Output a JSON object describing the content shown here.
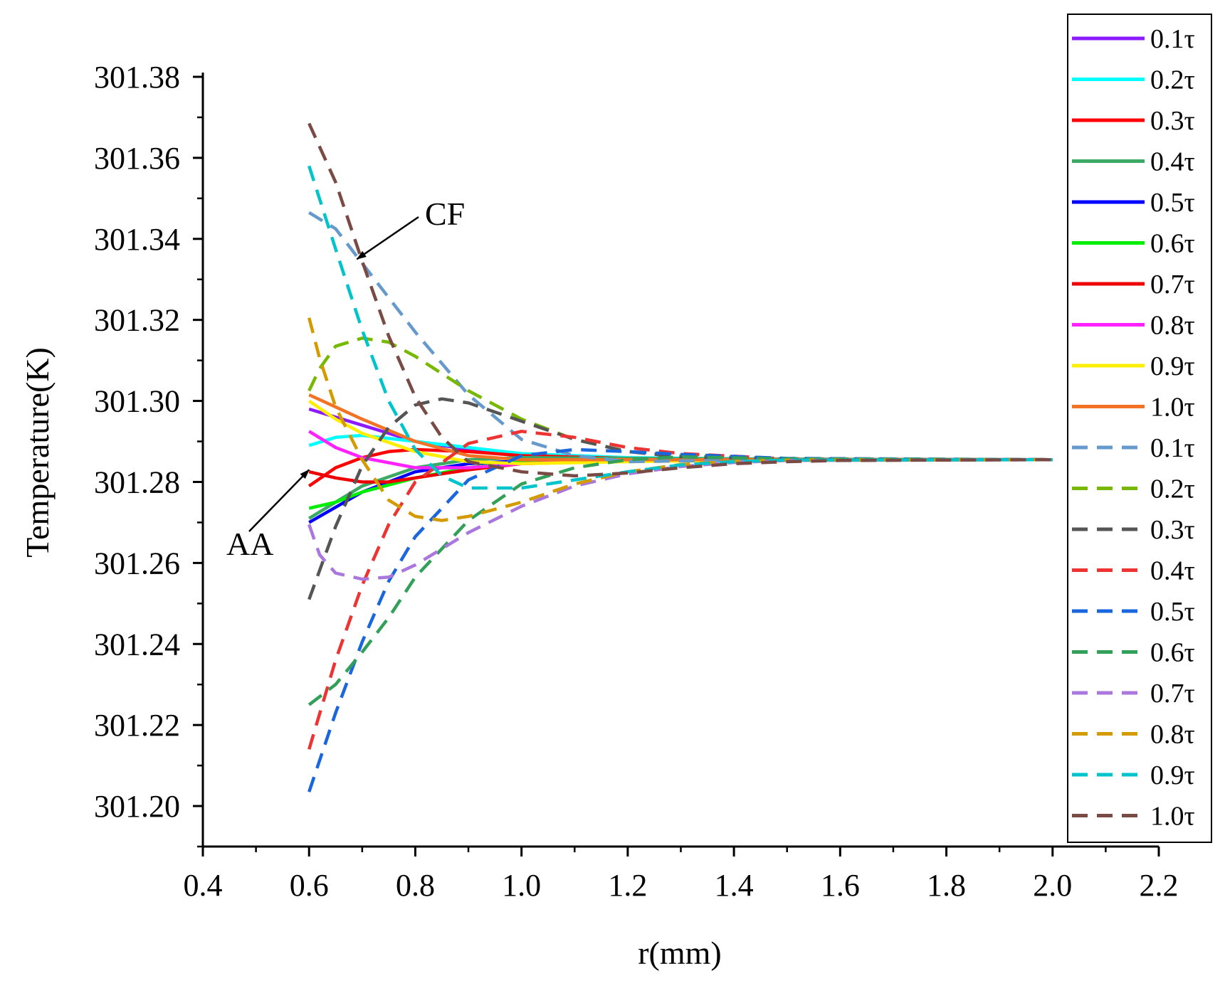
{
  "chart_data": {
    "type": "line",
    "xlabel": "r(mm)",
    "ylabel": "Temperature(K)",
    "xlim": [
      0.4,
      2.2
    ],
    "ylim": [
      301.19,
      301.38
    ],
    "xticks": [
      "0.4",
      "0.6",
      "0.8",
      "1.0",
      "1.2",
      "1.4",
      "1.6",
      "1.8",
      "2.0",
      "2.2"
    ],
    "yticks": [
      "301.20",
      "301.22",
      "301.24",
      "301.26",
      "301.28",
      "301.30",
      "301.32",
      "301.34",
      "301.36",
      "301.38"
    ],
    "annotations": [
      {
        "label": "CF",
        "target": [
          0.69,
          301.335
        ]
      },
      {
        "label": "AA",
        "target": [
          0.6,
          301.283
        ]
      }
    ],
    "series": [
      {
        "name": "0.1τ",
        "group": "AA",
        "style": "solid",
        "color": "#8b1aff",
        "points": [
          [
            0.6,
            301.298
          ],
          [
            0.7,
            301.294
          ],
          [
            0.8,
            301.29
          ],
          [
            0.9,
            301.288
          ],
          [
            1.0,
            301.2865
          ],
          [
            1.2,
            301.2858
          ],
          [
            1.5,
            301.2856
          ],
          [
            2.0,
            301.2855
          ]
        ]
      },
      {
        "name": "0.2τ",
        "group": "AA",
        "style": "solid",
        "color": "#00ffff",
        "points": [
          [
            0.6,
            301.289
          ],
          [
            0.65,
            301.291
          ],
          [
            0.7,
            301.2915
          ],
          [
            0.8,
            301.29
          ],
          [
            0.9,
            301.2885
          ],
          [
            1.0,
            301.287
          ],
          [
            1.2,
            301.286
          ],
          [
            1.5,
            301.2856
          ],
          [
            2.0,
            301.2855
          ]
        ]
      },
      {
        "name": "0.3τ",
        "group": "AA",
        "style": "solid",
        "color": "#ff0000",
        "points": [
          [
            0.6,
            301.279
          ],
          [
            0.65,
            301.2835
          ],
          [
            0.7,
            301.286
          ],
          [
            0.75,
            301.2875
          ],
          [
            0.8,
            301.288
          ],
          [
            0.9,
            301.2875
          ],
          [
            1.0,
            301.2865
          ],
          [
            1.2,
            301.2858
          ],
          [
            1.5,
            301.2856
          ],
          [
            2.0,
            301.2855
          ]
        ]
      },
      {
        "name": "0.4τ",
        "group": "AA",
        "style": "solid",
        "color": "#3caa64",
        "points": [
          [
            0.6,
            301.271
          ],
          [
            0.7,
            301.279
          ],
          [
            0.8,
            301.2835
          ],
          [
            0.9,
            301.2855
          ],
          [
            1.0,
            301.286
          ],
          [
            1.2,
            301.2858
          ],
          [
            1.5,
            301.2856
          ],
          [
            2.0,
            301.2855
          ]
        ]
      },
      {
        "name": "0.5τ",
        "group": "AA",
        "style": "solid",
        "color": "#0000ff",
        "points": [
          [
            0.6,
            301.27
          ],
          [
            0.7,
            301.2775
          ],
          [
            0.8,
            301.2825
          ],
          [
            0.9,
            301.2845
          ],
          [
            1.0,
            301.2852
          ],
          [
            1.2,
            301.2855
          ],
          [
            1.5,
            301.2855
          ],
          [
            2.0,
            301.2855
          ]
        ]
      },
      {
        "name": "0.6τ",
        "group": "AA",
        "style": "solid",
        "color": "#00ee00",
        "points": [
          [
            0.6,
            301.2735
          ],
          [
            0.65,
            301.275
          ],
          [
            0.7,
            301.2775
          ],
          [
            0.8,
            301.281
          ],
          [
            0.9,
            301.2835
          ],
          [
            1.0,
            301.285
          ],
          [
            1.2,
            301.2855
          ],
          [
            1.5,
            301.2855
          ],
          [
            2.0,
            301.2855
          ]
        ]
      },
      {
        "name": "0.7τ",
        "group": "AA",
        "style": "solid",
        "color": "#ee0000",
        "points": [
          [
            0.6,
            301.2825
          ],
          [
            0.65,
            301.281
          ],
          [
            0.7,
            301.28
          ],
          [
            0.75,
            301.28
          ],
          [
            0.8,
            301.281
          ],
          [
            0.9,
            301.283
          ],
          [
            1.0,
            301.2845
          ],
          [
            1.2,
            301.2852
          ],
          [
            1.5,
            301.2855
          ],
          [
            2.0,
            301.2855
          ]
        ]
      },
      {
        "name": "0.8τ",
        "group": "AA",
        "style": "solid",
        "color": "#ff22ff",
        "points": [
          [
            0.6,
            301.2925
          ],
          [
            0.65,
            301.2885
          ],
          [
            0.7,
            301.286
          ],
          [
            0.8,
            301.2835
          ],
          [
            0.9,
            301.2835
          ],
          [
            1.0,
            301.2845
          ],
          [
            1.2,
            301.2852
          ],
          [
            1.5,
            301.2855
          ],
          [
            2.0,
            301.2855
          ]
        ]
      },
      {
        "name": "0.9τ",
        "group": "AA",
        "style": "solid",
        "color": "#ffee00",
        "points": [
          [
            0.6,
            301.3
          ],
          [
            0.65,
            301.2955
          ],
          [
            0.7,
            301.292
          ],
          [
            0.8,
            301.2875
          ],
          [
            0.9,
            301.285
          ],
          [
            1.0,
            301.2845
          ],
          [
            1.2,
            301.285
          ],
          [
            1.5,
            301.2855
          ],
          [
            2.0,
            301.2855
          ]
        ]
      },
      {
        "name": "1.0τ",
        "group": "AA",
        "style": "solid",
        "color": "#f27325",
        "points": [
          [
            0.6,
            301.3015
          ],
          [
            0.65,
            301.2985
          ],
          [
            0.7,
            301.2955
          ],
          [
            0.8,
            301.29
          ],
          [
            0.9,
            301.2865
          ],
          [
            1.0,
            301.2855
          ],
          [
            1.2,
            301.2855
          ],
          [
            1.5,
            301.2855
          ],
          [
            2.0,
            301.2855
          ]
        ]
      },
      {
        "name": "0.1τ",
        "group": "CF",
        "style": "dashed",
        "color": "#6699cc",
        "points": [
          [
            0.6,
            301.3465
          ],
          [
            0.65,
            301.3425
          ],
          [
            0.7,
            301.334
          ],
          [
            0.8,
            301.317
          ],
          [
            0.9,
            301.3015
          ],
          [
            1.0,
            301.2905
          ],
          [
            1.1,
            301.2865
          ],
          [
            1.2,
            301.285
          ],
          [
            1.3,
            301.2852
          ],
          [
            1.5,
            301.2855
          ],
          [
            2.0,
            301.2855
          ]
        ]
      },
      {
        "name": "0.2τ",
        "group": "CF",
        "style": "dashed",
        "color": "#77b800",
        "points": [
          [
            0.6,
            301.3025
          ],
          [
            0.62,
            301.308
          ],
          [
            0.65,
            301.3135
          ],
          [
            0.7,
            301.3155
          ],
          [
            0.75,
            301.3145
          ],
          [
            0.8,
            301.311
          ],
          [
            0.9,
            301.3025
          ],
          [
            1.0,
            301.2955
          ],
          [
            1.1,
            301.2905
          ],
          [
            1.2,
            301.2875
          ],
          [
            1.3,
            301.2865
          ],
          [
            1.5,
            301.2857
          ],
          [
            2.0,
            301.2855
          ]
        ]
      },
      {
        "name": "0.3τ",
        "group": "CF",
        "style": "dashed",
        "color": "#555555",
        "points": [
          [
            0.6,
            301.251
          ],
          [
            0.65,
            301.269
          ],
          [
            0.7,
            301.284
          ],
          [
            0.75,
            301.2935
          ],
          [
            0.8,
            301.299
          ],
          [
            0.85,
            301.3005
          ],
          [
            0.9,
            301.2995
          ],
          [
            1.0,
            301.295
          ],
          [
            1.1,
            301.2905
          ],
          [
            1.2,
            301.2875
          ],
          [
            1.3,
            301.2862
          ],
          [
            1.5,
            301.2857
          ],
          [
            2.0,
            301.2855
          ]
        ]
      },
      {
        "name": "0.4τ",
        "group": "CF",
        "style": "dashed",
        "color": "#ee3333",
        "points": [
          [
            0.6,
            301.214
          ],
          [
            0.65,
            301.236
          ],
          [
            0.7,
            301.2545
          ],
          [
            0.75,
            301.2695
          ],
          [
            0.8,
            301.28
          ],
          [
            0.9,
            301.2895
          ],
          [
            1.0,
            301.2925
          ],
          [
            1.1,
            301.291
          ],
          [
            1.2,
            301.2885
          ],
          [
            1.3,
            301.287
          ],
          [
            1.5,
            301.2857
          ],
          [
            2.0,
            301.2855
          ]
        ]
      },
      {
        "name": "0.5τ",
        "group": "CF",
        "style": "dashed",
        "color": "#1a66dd",
        "points": [
          [
            0.6,
            301.2035
          ],
          [
            0.65,
            301.223
          ],
          [
            0.7,
            301.2405
          ],
          [
            0.75,
            301.2555
          ],
          [
            0.8,
            301.2665
          ],
          [
            0.9,
            301.2805
          ],
          [
            1.0,
            301.2865
          ],
          [
            1.1,
            301.288
          ],
          [
            1.2,
            301.2875
          ],
          [
            1.3,
            301.2868
          ],
          [
            1.5,
            301.2858
          ],
          [
            2.0,
            301.2855
          ]
        ]
      },
      {
        "name": "0.6τ",
        "group": "CF",
        "style": "dashed",
        "color": "#33a05a",
        "points": [
          [
            0.6,
            301.225
          ],
          [
            0.65,
            301.23
          ],
          [
            0.7,
            301.238
          ],
          [
            0.75,
            301.2465
          ],
          [
            0.8,
            301.2565
          ],
          [
            0.9,
            301.2705
          ],
          [
            1.0,
            301.2795
          ],
          [
            1.1,
            301.2835
          ],
          [
            1.2,
            301.2855
          ],
          [
            1.3,
            301.2862
          ],
          [
            1.5,
            301.2857
          ],
          [
            2.0,
            301.2855
          ]
        ]
      },
      {
        "name": "0.7τ",
        "group": "CF",
        "style": "dashed",
        "color": "#aa77dd",
        "points": [
          [
            0.6,
            301.2695
          ],
          [
            0.62,
            301.262
          ],
          [
            0.65,
            301.2575
          ],
          [
            0.7,
            301.256
          ],
          [
            0.75,
            301.2565
          ],
          [
            0.8,
            301.2595
          ],
          [
            0.9,
            301.2675
          ],
          [
            1.0,
            301.274
          ],
          [
            1.1,
            301.279
          ],
          [
            1.2,
            301.282
          ],
          [
            1.3,
            301.2838
          ],
          [
            1.4,
            301.2848
          ],
          [
            1.5,
            301.2853
          ],
          [
            2.0,
            301.2855
          ]
        ]
      },
      {
        "name": "0.8τ",
        "group": "CF",
        "style": "dashed",
        "color": "#d49b00",
        "points": [
          [
            0.6,
            301.3205
          ],
          [
            0.62,
            301.3105
          ],
          [
            0.65,
            301.2985
          ],
          [
            0.7,
            301.2855
          ],
          [
            0.75,
            301.2755
          ],
          [
            0.8,
            301.2715
          ],
          [
            0.85,
            301.2705
          ],
          [
            0.9,
            301.2715
          ],
          [
            1.0,
            301.275
          ],
          [
            1.1,
            301.2795
          ],
          [
            1.2,
            301.2825
          ],
          [
            1.3,
            301.2843
          ],
          [
            1.4,
            301.2851
          ],
          [
            1.5,
            301.2854
          ],
          [
            2.0,
            301.2855
          ]
        ]
      },
      {
        "name": "0.9τ",
        "group": "CF",
        "style": "dashed",
        "color": "#00c4cc",
        "points": [
          [
            0.6,
            301.358
          ],
          [
            0.65,
            301.3375
          ],
          [
            0.7,
            301.3175
          ],
          [
            0.75,
            301.3
          ],
          [
            0.8,
            301.288
          ],
          [
            0.85,
            301.2815
          ],
          [
            0.9,
            301.2785
          ],
          [
            1.0,
            301.2785
          ],
          [
            1.1,
            301.2805
          ],
          [
            1.2,
            301.2825
          ],
          [
            1.3,
            301.2842
          ],
          [
            1.4,
            301.285
          ],
          [
            1.5,
            301.2854
          ],
          [
            2.0,
            301.2855
          ]
        ]
      },
      {
        "name": "1.0τ",
        "group": "CF",
        "style": "dashed",
        "color": "#7a4a44",
        "points": [
          [
            0.6,
            301.3685
          ],
          [
            0.65,
            301.354
          ],
          [
            0.7,
            301.3345
          ],
          [
            0.75,
            301.316
          ],
          [
            0.8,
            301.301
          ],
          [
            0.85,
            301.291
          ],
          [
            0.9,
            301.285
          ],
          [
            1.0,
            301.2825
          ],
          [
            1.1,
            301.2815
          ],
          [
            1.2,
            301.2822
          ],
          [
            1.3,
            301.2835
          ],
          [
            1.4,
            301.2845
          ],
          [
            1.5,
            301.285
          ],
          [
            1.6,
            301.2853
          ],
          [
            2.0,
            301.2855
          ]
        ]
      }
    ]
  }
}
